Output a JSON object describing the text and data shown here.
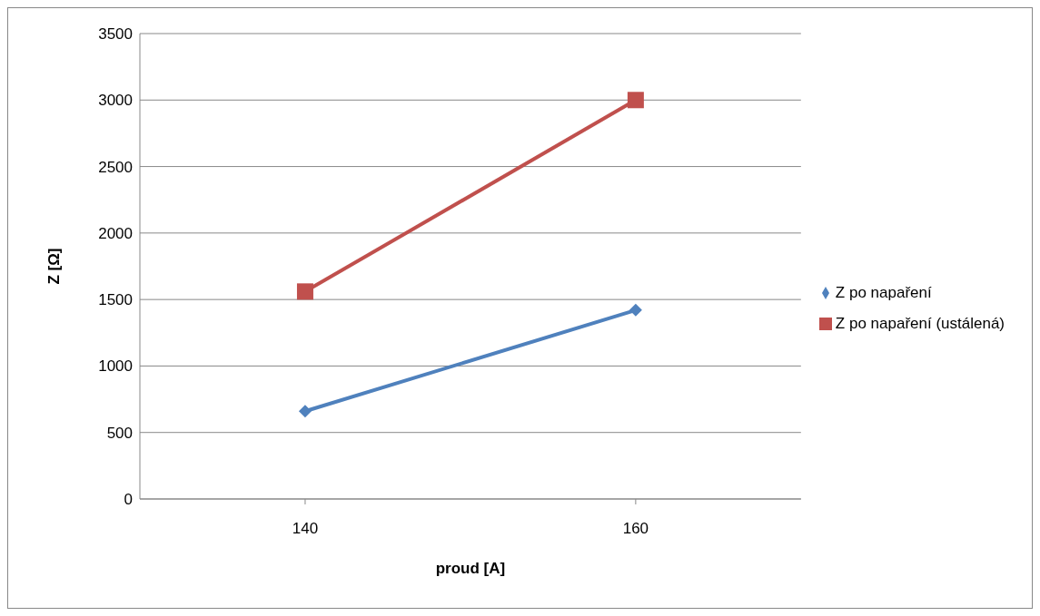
{
  "chart_data": {
    "type": "line",
    "xlabel": "proud [A]",
    "ylabel": "Z [Ω]",
    "categories": [
      "140",
      "160"
    ],
    "series": [
      {
        "name": "Z po napaření (ustálená)",
        "color": "#c0504d",
        "marker": "square",
        "values": [
          1560,
          3000
        ]
      },
      {
        "name": "Z po napaření",
        "color": "#4f81bd",
        "marker": "diamond",
        "values": [
          660,
          1420
        ]
      }
    ],
    "ylim": [
      0,
      3500
    ],
    "yticks": [
      0,
      500,
      1000,
      1500,
      2000,
      2500,
      3000,
      3500
    ],
    "grid": "y",
    "legend": "right"
  }
}
